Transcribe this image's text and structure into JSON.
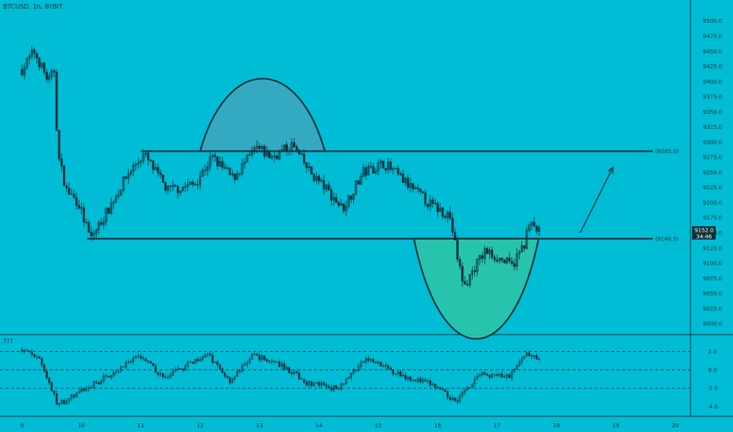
{
  "header": {
    "symbol_label": "BTCUSD, 1h, BYBIT"
  },
  "indicator": {
    "label": "???"
  },
  "colors": {
    "background": "#00bcd4",
    "candle": "#0d2f3a",
    "cap_fill": "#3aa7c0",
    "cup_fill": "#2bc4a8",
    "price_tag_bg": "#0d2f3a",
    "price_tag_text": "#ffffff"
  },
  "price_tag": {
    "price": "9152.0",
    "countdown": "34:46"
  },
  "levels": [
    {
      "value": 9285.0,
      "label": "(9285.0)"
    },
    {
      "value": 9140.5,
      "label": "(9140.5)"
    }
  ],
  "chart_data": [
    {
      "type": "candlestick",
      "title": "BTCUSD, 1h, BYBIT",
      "x_ticks": [
        "9",
        "10",
        "11",
        "12",
        "13",
        "14",
        "15",
        "16",
        "17",
        "18",
        "19",
        "20"
      ],
      "y_ticks": [
        "9500.0",
        "9475.0",
        "9450.0",
        "9425.0",
        "9400.0",
        "9375.0",
        "9350.0",
        "9325.0",
        "9300.0",
        "9275.0",
        "9250.0",
        "9225.0",
        "9200.0",
        "9175.0",
        "9150.0",
        "9125.0",
        "9100.0",
        "9075.0",
        "9050.0",
        "9025.0",
        "9000.0"
      ],
      "ylim": [
        8995,
        9510
      ],
      "last_price": 9152.0,
      "approx_path": [
        {
          "x": 9.0,
          "y": 9420
        },
        {
          "x": 9.2,
          "y": 9450
        },
        {
          "x": 9.45,
          "y": 9400
        },
        {
          "x": 9.55,
          "y": 9420
        },
        {
          "x": 9.6,
          "y": 9280
        },
        {
          "x": 9.75,
          "y": 9220
        },
        {
          "x": 9.95,
          "y": 9200
        },
        {
          "x": 10.15,
          "y": 9140
        },
        {
          "x": 10.4,
          "y": 9180
        },
        {
          "x": 10.8,
          "y": 9250
        },
        {
          "x": 11.05,
          "y": 9280
        },
        {
          "x": 11.45,
          "y": 9220
        },
        {
          "x": 11.9,
          "y": 9230
        },
        {
          "x": 12.2,
          "y": 9275
        },
        {
          "x": 12.55,
          "y": 9240
        },
        {
          "x": 12.95,
          "y": 9290
        },
        {
          "x": 13.2,
          "y": 9275
        },
        {
          "x": 13.55,
          "y": 9295
        },
        {
          "x": 13.85,
          "y": 9250
        },
        {
          "x": 14.1,
          "y": 9225
        },
        {
          "x": 14.4,
          "y": 9190
        },
        {
          "x": 14.75,
          "y": 9250
        },
        {
          "x": 15.1,
          "y": 9265
        },
        {
          "x": 15.55,
          "y": 9225
        },
        {
          "x": 15.9,
          "y": 9195
        },
        {
          "x": 16.2,
          "y": 9180
        },
        {
          "x": 16.35,
          "y": 9100
        },
        {
          "x": 16.45,
          "y": 9060
        },
        {
          "x": 16.6,
          "y": 9090
        },
        {
          "x": 16.8,
          "y": 9120
        },
        {
          "x": 17.0,
          "y": 9110
        },
        {
          "x": 17.25,
          "y": 9095
        },
        {
          "x": 17.45,
          "y": 9130
        },
        {
          "x": 17.55,
          "y": 9165
        },
        {
          "x": 17.7,
          "y": 9152
        }
      ],
      "annotations": [
        {
          "type": "horizontal_level",
          "value": 9285.0,
          "label": "(9285.0)"
        },
        {
          "type": "horizontal_level",
          "value": 9140.5,
          "label": "(9140.5)"
        },
        {
          "type": "arc_shape",
          "fill": "#3aa7c0",
          "x_range": [
            12.0,
            14.1
          ],
          "base": 9285.0,
          "peak": 9370
        },
        {
          "type": "arc_shape",
          "fill": "#2bc4a8",
          "x_range": [
            15.6,
            17.7
          ],
          "base": 9140.5,
          "trough": 9025
        },
        {
          "type": "arrow",
          "from": {
            "x": 18.4,
            "y": 9150
          },
          "to": {
            "x": 18.95,
            "y": 9258
          }
        }
      ]
    },
    {
      "type": "line",
      "title": "???",
      "y_ticks": [
        "2.0",
        "0.0",
        "-2.0",
        "-4.0"
      ],
      "ylim": [
        -4.8,
        3.4
      ],
      "dashed_levels": [
        2.0,
        0.0,
        -2.0
      ],
      "approx_path": [
        {
          "x": 9.0,
          "y": 2.2
        },
        {
          "x": 9.3,
          "y": 1.2
        },
        {
          "x": 9.6,
          "y": -3.8
        },
        {
          "x": 10.1,
          "y": -2.0
        },
        {
          "x": 10.6,
          "y": 0.0
        },
        {
          "x": 11.0,
          "y": 1.5
        },
        {
          "x": 11.4,
          "y": -1.0
        },
        {
          "x": 12.1,
          "y": 1.8
        },
        {
          "x": 12.5,
          "y": -1.2
        },
        {
          "x": 12.9,
          "y": 1.6
        },
        {
          "x": 13.4,
          "y": 0.4
        },
        {
          "x": 13.8,
          "y": -1.4
        },
        {
          "x": 14.3,
          "y": -2.0
        },
        {
          "x": 14.8,
          "y": 1.2
        },
        {
          "x": 15.4,
          "y": -0.6
        },
        {
          "x": 15.9,
          "y": -1.6
        },
        {
          "x": 16.3,
          "y": -3.4
        },
        {
          "x": 16.7,
          "y": -0.5
        },
        {
          "x": 17.2,
          "y": -0.8
        },
        {
          "x": 17.5,
          "y": 1.8
        },
        {
          "x": 17.7,
          "y": 1.0
        }
      ]
    }
  ]
}
